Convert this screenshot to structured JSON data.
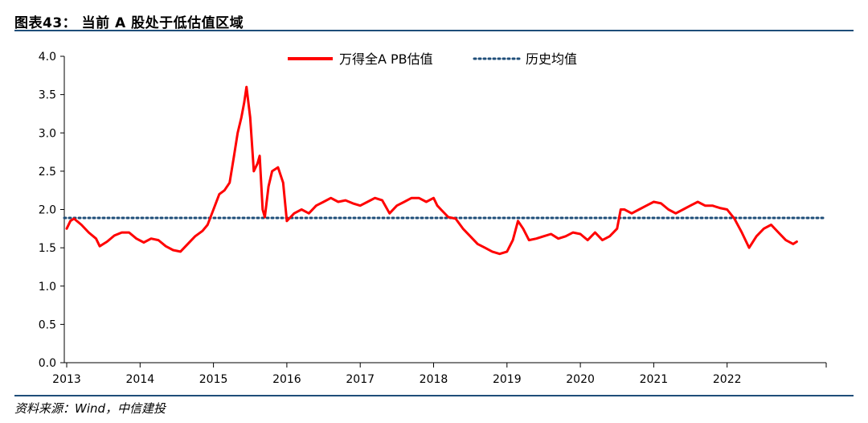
{
  "header": {
    "title": "图表43： 当前 A 股处于低估值区域"
  },
  "footer": {
    "source": "资料来源：Wind，中信建投"
  },
  "colors": {
    "series_main": "#ff0000",
    "series_avg": "#1f4e79",
    "rule": "#1f4e79"
  },
  "chart_data": {
    "type": "line",
    "title": "图表43： 当前 A 股处于低估值区域",
    "xlabel": "",
    "ylabel": "",
    "xlim": [
      2013,
      2023
    ],
    "ylim": [
      0.0,
      4.0
    ],
    "y_ticks": [
      "0.0",
      "0.5",
      "1.0",
      "1.5",
      "2.0",
      "2.5",
      "3.0",
      "3.5",
      "4.0"
    ],
    "x_ticks": [
      "2013",
      "2014",
      "2015",
      "2016",
      "2017",
      "2018",
      "2019",
      "2020",
      "2021",
      "2022"
    ],
    "legend_position": "top-center",
    "series": [
      {
        "name": "万得全A  PB估值",
        "style": "solid",
        "color": "#ff0000",
        "x": [
          2013.0,
          2013.05,
          2013.1,
          2013.2,
          2013.3,
          2013.4,
          2013.45,
          2013.55,
          2013.65,
          2013.75,
          2013.85,
          2013.95,
          2014.05,
          2014.15,
          2014.25,
          2014.35,
          2014.45,
          2014.55,
          2014.65,
          2014.75,
          2014.85,
          2014.92,
          2015.0,
          2015.08,
          2015.15,
          2015.22,
          2015.28,
          2015.33,
          2015.38,
          2015.42,
          2015.45,
          2015.5,
          2015.55,
          2015.6,
          2015.63,
          2015.67,
          2015.7,
          2015.75,
          2015.8,
          2015.88,
          2015.95,
          2016.0,
          2016.05,
          2016.1,
          2016.2,
          2016.3,
          2016.4,
          2016.5,
          2016.6,
          2016.7,
          2016.8,
          2016.9,
          2017.0,
          2017.1,
          2017.2,
          2017.3,
          2017.4,
          2017.5,
          2017.6,
          2017.7,
          2017.8,
          2017.9,
          2018.0,
          2018.05,
          2018.1,
          2018.2,
          2018.3,
          2018.4,
          2018.5,
          2018.6,
          2018.7,
          2018.8,
          2018.9,
          2019.0,
          2019.08,
          2019.15,
          2019.22,
          2019.3,
          2019.4,
          2019.5,
          2019.6,
          2019.7,
          2019.8,
          2019.9,
          2020.0,
          2020.1,
          2020.2,
          2020.3,
          2020.4,
          2020.5,
          2020.55,
          2020.6,
          2020.7,
          2020.8,
          2020.9,
          2021.0,
          2021.1,
          2021.2,
          2021.3,
          2021.4,
          2021.5,
          2021.6,
          2021.7,
          2021.8,
          2021.9,
          2022.0,
          2022.1,
          2022.2,
          2022.3,
          2022.4,
          2022.5,
          2022.6,
          2022.7,
          2022.8,
          2022.9,
          2022.95
        ],
        "y": [
          1.75,
          1.85,
          1.88,
          1.8,
          1.7,
          1.62,
          1.52,
          1.58,
          1.66,
          1.7,
          1.7,
          1.62,
          1.57,
          1.62,
          1.6,
          1.52,
          1.47,
          1.45,
          1.55,
          1.65,
          1.72,
          1.8,
          2.0,
          2.2,
          2.25,
          2.35,
          2.7,
          3.0,
          3.2,
          3.4,
          3.6,
          3.2,
          2.5,
          2.6,
          2.7,
          2.0,
          1.9,
          2.3,
          2.5,
          2.55,
          2.35,
          1.85,
          1.9,
          1.95,
          2.0,
          1.95,
          2.05,
          2.1,
          2.15,
          2.1,
          2.12,
          2.08,
          2.05,
          2.1,
          2.15,
          2.12,
          1.95,
          2.05,
          2.1,
          2.15,
          2.15,
          2.1,
          2.15,
          2.05,
          2.0,
          1.9,
          1.88,
          1.75,
          1.65,
          1.55,
          1.5,
          1.45,
          1.42,
          1.45,
          1.6,
          1.85,
          1.75,
          1.6,
          1.62,
          1.65,
          1.68,
          1.62,
          1.65,
          1.7,
          1.68,
          1.6,
          1.7,
          1.6,
          1.65,
          1.75,
          2.0,
          2.0,
          1.95,
          2.0,
          2.05,
          2.1,
          2.08,
          2.0,
          1.95,
          2.0,
          2.05,
          2.1,
          2.05,
          2.05,
          2.02,
          2.0,
          1.88,
          1.7,
          1.5,
          1.65,
          1.75,
          1.8,
          1.7,
          1.6,
          1.55,
          1.58
        ]
      },
      {
        "name": "历史均值",
        "style": "dotted",
        "color": "#1f4e79",
        "x": [
          2013.0,
          2023.0
        ],
        "y": [
          1.89,
          1.89
        ]
      }
    ]
  }
}
